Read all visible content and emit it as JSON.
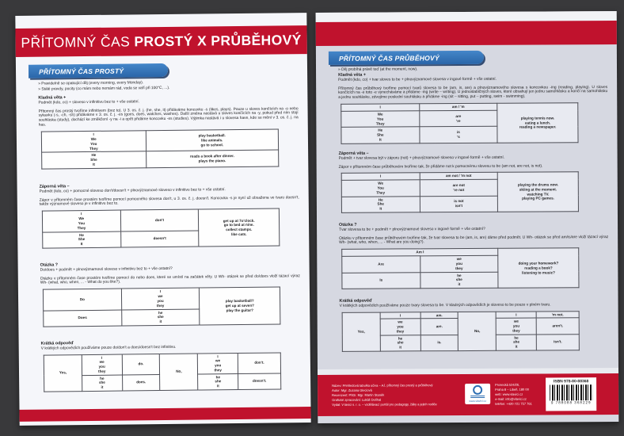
{
  "glyphs": {
    "bullet": "»"
  },
  "colors": {
    "background": "#39393b",
    "red": "#c0122d",
    "blue": "#3178bd",
    "navy": "#1c3a63",
    "back_card": "#d6d8e1"
  },
  "front_card": {
    "title_light": "PŘÍTOMNÝ ČAS ",
    "title_bold": "PROSTÝ X PRŮBĚHOVÝ",
    "pill": "PŘÍTOMNÝ ČAS PROSTÝ",
    "bullets": [
      "Pravidelně se opakující děj (every morning, every Monday).",
      "Stálé pravdy, pocity (co mám nebo nemám rád, voda se vaří při 100°C, ...)."
    ],
    "sections": [
      {
        "heading": "Kladná věta +",
        "formula": "Podmět (kdo, co) + sloveso v infinitivu bez to + vše ostatní.",
        "paragraph": "Přítomný čas prostý tvoříme infinitivem (bez to). U 3. os. č. j. (he, she, it) přidáváme koncovku -s (likes, plays). Pouze u sloves končících na -o nebo sykavku (-s, -ch, -sh) přidáváme v 3. os. č. j. -es (goes, does, watches, washes). Další změna nastává u sloves končících na -y, pokud před ním stojí souhláska (study), dochází ke změkčení -y na -i a opět přidáme koncovku -es (studies). Výjimka nastává i u slovesa have, kde se mění v 3. os. č. j. na has.",
        "table": {
          "widths": [
            44,
            56
          ],
          "rows": [
            [
              {
                "lines": [
                  "I",
                  "We",
                  "You",
                  "They"
                ],
                "bold": true
              },
              {
                "lines": [
                  "play basketball.",
                  "like animals.",
                  "go to school."
                ],
                "bold": true
              }
            ],
            [
              {
                "lines": [
                  "He",
                  "She",
                  "It"
                ],
                "bold": true
              },
              {
                "lines": [
                  "reads a book after dinner.",
                  "plays the piano."
                ],
                "bold": true
              }
            ]
          ]
        }
      },
      {
        "heading": "Záporná věta –",
        "formula": "Podmět (kdo, co) + pomocné sloveso don't/doesn't + plnovýznamové sloveso v infinitivu bez to + vše ostatní.",
        "paragraph": "Zápor v přítomném čase prostém tvoříme pomocí pomocného slovesa don't, u 3. os. č. j. doesn't. Koncovka -s je nyní už obsažena ve tvaru doesn't, takže významové sloveso je v infinitivu bez to.",
        "table": {
          "widths": [
            33,
            33,
            34
          ],
          "rows": [
            [
              {
                "lines": [
                  "I",
                  "We",
                  "You",
                  "They"
                ],
                "bold": true
              },
              {
                "lines": [
                  "don't"
                ],
                "bold": true
              },
              {
                "lines": [
                  "get up at 7o'clock.",
                  "go to bed at nine.",
                  "collect stamps.",
                  "like cats."
                ],
                "bold": true,
                "rowspan": 2
              }
            ],
            [
              {
                "lines": [
                  "He",
                  "She",
                  "It"
                ],
                "bold": true
              },
              {
                "lines": [
                  "doesn't"
                ],
                "bold": true
              }
            ]
          ]
        }
      },
      {
        "heading": "Otázka ?",
        "formula": "Do/does + podmět + plnovýznamové sloveso v infinitivu bez to + vše ostatní?",
        "paragraph": "Otázku v přítomném čase prostém tvoříme pomocí do nebo does, které se umístí na začátek věty. U Wh- otázek se před do/does vloží tázací výraz Wh- (what, who, when, ... - What do you like?).",
        "table": {
          "widths": [
            33,
            33,
            34
          ],
          "rows": [
            [
              {
                "lines": [
                  "Do"
                ],
                "bold": true
              },
              {
                "lines": [
                  "I",
                  "we",
                  "you",
                  "they"
                ],
                "bold": true
              },
              {
                "lines": [
                  "play basketball?",
                  "get up at seven?",
                  "play the guitar?"
                ],
                "bold": true,
                "rowspan": 2
              }
            ],
            [
              {
                "lines": [
                  "Does"
                ],
                "bold": true
              },
              {
                "lines": [
                  "he",
                  "she",
                  "it"
                ],
                "bold": true
              }
            ]
          ]
        }
      },
      {
        "heading": "Krátká odpověď",
        "formula": "V krátkých odpovědích používáme pouze do/don't a does/doesn't bez infinitivu.",
        "paragraph": "",
        "table": {
          "widths": [
            16,
            17,
            16,
            16,
            17,
            18
          ],
          "rows": [
            [
              {
                "lines": [
                  "Yes,"
                ],
                "bold": true,
                "rowspan": 2
              },
              {
                "lines": [
                  "I",
                  "we",
                  "you",
                  "they"
                ],
                "bold": true
              },
              {
                "lines": [
                  "do."
                ],
                "bold": true
              },
              {
                "lines": [
                  "No,"
                ],
                "bold": true,
                "rowspan": 2
              },
              {
                "lines": [
                  "I",
                  "we",
                  "you",
                  "they"
                ],
                "bold": true
              },
              {
                "lines": [
                  "don't."
                ],
                "bold": true
              }
            ],
            [
              {
                "lines": [
                  "he",
                  "she",
                  "it"
                ],
                "bold": true
              },
              {
                "lines": [
                  "does."
                ],
                "bold": true
              },
              {
                "lines": [
                  "he",
                  "she",
                  "it"
                ],
                "bold": true
              },
              {
                "lines": [
                  "doesn't."
                ],
                "bold": true
              }
            ]
          ]
        }
      }
    ]
  },
  "back_card": {
    "pill": "PŘÍTOMNÝ ČAS PRŮBĚHOVÝ",
    "bullets": [
      "Děj probíhá právě teď (at the moment, now)."
    ],
    "sections": [
      {
        "heading": "Kladná věta +",
        "formula": "Podmět (kdo, co) + tvar sloves to be + plnovýznamové slovesa v ingové formě + vše ostatní.",
        "paragraph": "Přítomný čas průběhový tvoříme pomocí tvarů slovesa to be (am, is, are) a plnovýznamového slovesa s koncovkou -ing (reading, playing). U sloves končících na -e toto -e vynecháváme a přidáme -ing (write – writing). U jednoslabičných sloves, které obsahují jen jednu samohlásku a končí na samohlásku a jednu souhlásku, zdvojíme poslední souhlásku a přidáme -ing (sit – sitting, put – putting, swim - swimming).",
        "table": {
          "widths": [
            33,
            33,
            34
          ],
          "rows": [
            [
              {
                "lines": [
                  "I"
                ],
                "bold": true
              },
              {
                "lines": [
                  "am / 'm"
                ],
                "bold": true
              },
              {
                "lines": [
                  "playing tennis now.",
                  "eating a lunch.",
                  "reading a newspaper."
                ],
                "bold": true,
                "rowspan": 3
              }
            ],
            [
              {
                "lines": [
                  "We",
                  "You",
                  "They"
                ],
                "bold": true
              },
              {
                "lines": [
                  "are",
                  "'re"
                ],
                "bold": true
              }
            ],
            [
              {
                "lines": [
                  "He",
                  "She",
                  "It"
                ],
                "bold": true
              },
              {
                "lines": [
                  "is",
                  "'s"
                ],
                "bold": true
              }
            ]
          ]
        }
      },
      {
        "heading": "Záporná věta –",
        "formula": "Podmět + tvar slovesa být v záporu (not) + plnovýznamové sloveso v ingové formě + vše ostatní.",
        "paragraph": "Zápor v přítomném čase průběhovém tvoříme tak, že přidáme not k pomocnému slovesu to be (am not, are not, is not).",
        "table": {
          "widths": [
            33,
            33,
            34
          ],
          "rows": [
            [
              {
                "lines": [
                  "I"
                ],
                "bold": true
              },
              {
                "lines": [
                  "am not / 'm not"
                ],
                "bold": true
              },
              {
                "lines": [
                  "playing the drums now.",
                  "skiing at the moment.",
                  "watching TV.",
                  "playing PC games."
                ],
                "bold": true,
                "rowspan": 3
              }
            ],
            [
              {
                "lines": [
                  "We",
                  "You",
                  "They"
                ],
                "bold": true
              },
              {
                "lines": [
                  "are not",
                  "'re not"
                ],
                "bold": true
              }
            ],
            [
              {
                "lines": [
                  "He",
                  "She",
                  "It"
                ],
                "bold": true
              },
              {
                "lines": [
                  "is not",
                  "isn't"
                ],
                "bold": true
              }
            ]
          ]
        }
      },
      {
        "heading": "Otázka ?",
        "formula": "Tvar slovesa to be + podmět + plnovýznamové sloveso v ingové formě + vše ostatní?",
        "paragraph": "Otázku v přítomném čase průběhovém tvoříme tak, že tvar slovesa to be (am, is, are) dáme před podmět. U Wh- otázek se před am/is/are vloží tázací výraz Wh- (what, who, when, ... - What are you doing?).",
        "table": {
          "widths": [
            33,
            33,
            34
          ],
          "rows": [
            [
              {
                "lines": [
                  "Am I"
                ],
                "bold": true,
                "colspan": 2
              },
              {
                "lines": [
                  "doing your homework?",
                  "reading a book?",
                  "listening to music?"
                ],
                "bold": true,
                "rowspan": 3
              }
            ],
            [
              {
                "lines": [
                  "Are"
                ],
                "bold": true
              },
              {
                "lines": [
                  "we",
                  "you",
                  "they"
                ],
                "bold": true
              }
            ],
            [
              {
                "lines": [
                  "Is"
                ],
                "bold": true
              },
              {
                "lines": [
                  "he",
                  "she",
                  "it"
                ],
                "bold": true
              }
            ]
          ]
        }
      },
      {
        "heading": "Krátká odpověď",
        "formula": "V krátkých odpovědích používáme pouze tvary slovesa to be. V kladných odpovědích je sloveso to be pouze v plném tvaru.",
        "paragraph": "",
        "table": {
          "widths": [
            16,
            17,
            16,
            16,
            17,
            18
          ],
          "rows": [
            [
              {
                "lines": [
                  "Yes,"
                ],
                "bold": true,
                "rowspan": 3
              },
              {
                "lines": [
                  "I"
                ],
                "bold": true
              },
              {
                "lines": [
                  "am."
                ],
                "bold": true
              },
              {
                "lines": [
                  "No,"
                ],
                "bold": true,
                "rowspan": 3
              },
              {
                "lines": [
                  "I"
                ],
                "bold": true
              },
              {
                "lines": [
                  "'m not."
                ],
                "bold": true
              }
            ],
            [
              {
                "lines": [
                  "we",
                  "you",
                  "they"
                ],
                "bold": true
              },
              {
                "lines": [
                  "are."
                ],
                "bold": true
              },
              {
                "lines": [
                  "we",
                  "you",
                  "they"
                ],
                "bold": true
              },
              {
                "lines": [
                  "aren't."
                ],
                "bold": true
              }
            ],
            [
              {
                "lines": [
                  "he",
                  "she",
                  "it"
                ],
                "bold": true
              },
              {
                "lines": [
                  "is."
                ],
                "bold": true
              },
              {
                "lines": [
                  "he",
                  "she",
                  "it"
                ],
                "bold": true
              },
              {
                "lines": [
                  "isn't."
                ],
                "bold": true
              }
            ]
          ]
        }
      }
    ],
    "footer": {
      "credits": [
        "Název: Přehledová tabulka učiva – AJ, přítomný čas prostý a průběhový",
        "Autor: Mgr. Zuzana Gleciová",
        "Recenzent: PhDr. Mgr. Martin Staněk",
        "Grafické zpracování: Lukáš Dolíhal",
        "Vydal: V lavici s. r. o. – vzdělávací portál pro pedagogy, žáky a jejich rodiče"
      ],
      "logo_text": "www.vlavici.cz",
      "address": [
        "Prosecká 524/26,",
        "Praha 8 – Libeň, 180 00",
        "web: www.vlavici.cz",
        "e-mail: info@vlavici.cz",
        "telefon: +420 721 757 761"
      ],
      "isbn_label": "ISBN 978-80-88368",
      "barcode_digits": "9 788088 368229"
    }
  }
}
